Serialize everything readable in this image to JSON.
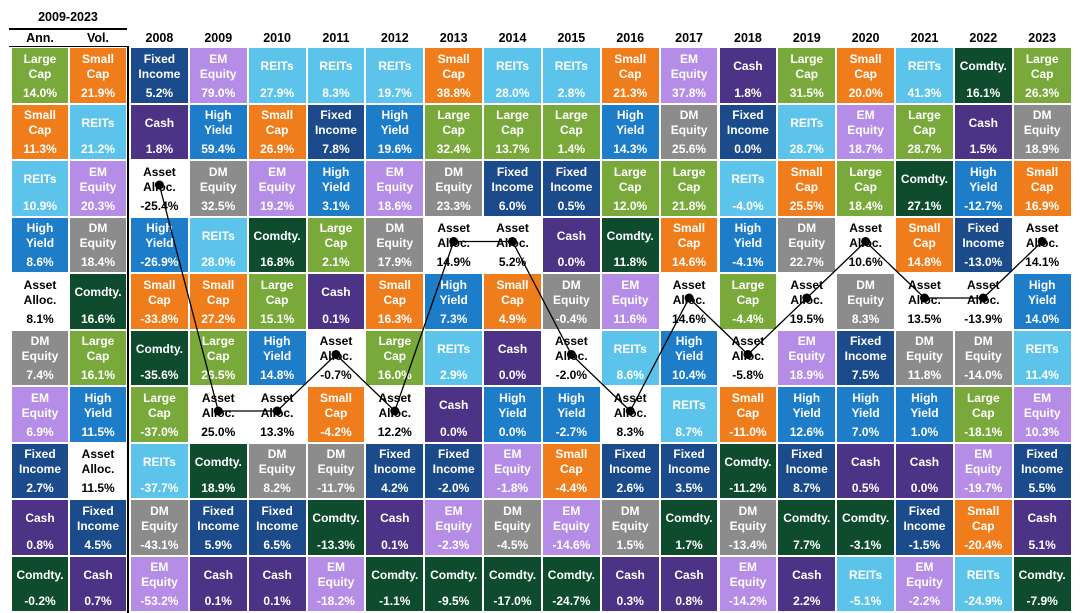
{
  "colors": {
    "Large Cap": "#7AA93B",
    "Small Cap": "#EF7D1C",
    "REITs": "#5CC4EA",
    "High Yield": "#1E7DC8",
    "Asset Alloc.": "#FFFFFF",
    "DM Equity": "#8C8C8C",
    "EM Equity": "#B58DE6",
    "Fixed Income": "#1B4B8B",
    "Cash": "#4D3385",
    "Comdty.": "#0F4C2E"
  },
  "chart_data": {
    "type": "table",
    "summary": {
      "period": "2009-2023",
      "columns": [
        {
          "label": "Ann.",
          "cells": [
            {
              "asset": "Large Cap",
              "value": "14.0%"
            },
            {
              "asset": "Small Cap",
              "value": "11.3%"
            },
            {
              "asset": "REITs",
              "value": "10.9%"
            },
            {
              "asset": "High Yield",
              "value": "8.6%"
            },
            {
              "asset": "Asset Alloc.",
              "value": "8.1%"
            },
            {
              "asset": "DM Equity",
              "value": "7.4%"
            },
            {
              "asset": "EM Equity",
              "value": "6.9%"
            },
            {
              "asset": "Fixed Income",
              "value": "2.7%"
            },
            {
              "asset": "Cash",
              "value": "0.8%"
            },
            {
              "asset": "Comdty.",
              "value": "-0.2%"
            }
          ]
        },
        {
          "label": "Vol.",
          "cells": [
            {
              "asset": "Small Cap",
              "value": "21.9%"
            },
            {
              "asset": "REITs",
              "value": "21.2%"
            },
            {
              "asset": "EM Equity",
              "value": "20.3%"
            },
            {
              "asset": "DM Equity",
              "value": "18.4%"
            },
            {
              "asset": "Comdty.",
              "value": "16.6%"
            },
            {
              "asset": "Large Cap",
              "value": "16.1%"
            },
            {
              "asset": "High Yield",
              "value": "11.5%"
            },
            {
              "asset": "Asset Alloc.",
              "value": "11.5%"
            },
            {
              "asset": "Fixed Income",
              "value": "4.5%"
            },
            {
              "asset": "Cash",
              "value": "0.7%"
            }
          ]
        }
      ]
    },
    "years": [
      {
        "year": "2008",
        "cells": [
          {
            "asset": "Fixed Income",
            "value": "5.2%"
          },
          {
            "asset": "Cash",
            "value": "1.8%"
          },
          {
            "asset": "Asset Alloc.",
            "value": "-25.4%"
          },
          {
            "asset": "High Yield",
            "value": "-26.9%"
          },
          {
            "asset": "Small Cap",
            "value": "-33.8%"
          },
          {
            "asset": "Comdty.",
            "value": "-35.6%"
          },
          {
            "asset": "Large Cap",
            "value": "-37.0%"
          },
          {
            "asset": "REITs",
            "value": "-37.7%"
          },
          {
            "asset": "DM Equity",
            "value": "-43.1%"
          },
          {
            "asset": "EM Equity",
            "value": "-53.2%"
          }
        ]
      },
      {
        "year": "2009",
        "cells": [
          {
            "asset": "EM Equity",
            "value": "79.0%"
          },
          {
            "asset": "High Yield",
            "value": "59.4%"
          },
          {
            "asset": "DM Equity",
            "value": "32.5%"
          },
          {
            "asset": "REITs",
            "value": "28.0%"
          },
          {
            "asset": "Small Cap",
            "value": "27.2%"
          },
          {
            "asset": "Large Cap",
            "value": "26.5%"
          },
          {
            "asset": "Asset Alloc.",
            "value": "25.0%"
          },
          {
            "asset": "Comdty.",
            "value": "18.9%"
          },
          {
            "asset": "Fixed Income",
            "value": "5.9%"
          },
          {
            "asset": "Cash",
            "value": "0.1%"
          }
        ]
      },
      {
        "year": "2010",
        "cells": [
          {
            "asset": "REITs",
            "value": "27.9%"
          },
          {
            "asset": "Small Cap",
            "value": "26.9%"
          },
          {
            "asset": "EM Equity",
            "value": "19.2%"
          },
          {
            "asset": "Comdty.",
            "value": "16.8%"
          },
          {
            "asset": "Large Cap",
            "value": "15.1%"
          },
          {
            "asset": "High Yield",
            "value": "14.8%"
          },
          {
            "asset": "Asset Alloc.",
            "value": "13.3%"
          },
          {
            "asset": "DM Equity",
            "value": "8.2%"
          },
          {
            "asset": "Fixed Income",
            "value": "6.5%"
          },
          {
            "asset": "Cash",
            "value": "0.1%"
          }
        ]
      },
      {
        "year": "2011",
        "cells": [
          {
            "asset": "REITs",
            "value": "8.3%"
          },
          {
            "asset": "Fixed Income",
            "value": "7.8%"
          },
          {
            "asset": "High Yield",
            "value": "3.1%"
          },
          {
            "asset": "Large Cap",
            "value": "2.1%"
          },
          {
            "asset": "Cash",
            "value": "0.1%"
          },
          {
            "asset": "Asset Alloc.",
            "value": "-0.7%"
          },
          {
            "asset": "Small Cap",
            "value": "-4.2%"
          },
          {
            "asset": "DM Equity",
            "value": "-11.7%"
          },
          {
            "asset": "Comdty.",
            "value": "-13.3%"
          },
          {
            "asset": "EM Equity",
            "value": "-18.2%"
          }
        ]
      },
      {
        "year": "2012",
        "cells": [
          {
            "asset": "REITs",
            "value": "19.7%"
          },
          {
            "asset": "High Yield",
            "value": "19.6%"
          },
          {
            "asset": "EM Equity",
            "value": "18.6%"
          },
          {
            "asset": "DM Equity",
            "value": "17.9%"
          },
          {
            "asset": "Small Cap",
            "value": "16.3%"
          },
          {
            "asset": "Large Cap",
            "value": "16.0%"
          },
          {
            "asset": "Asset Alloc.",
            "value": "12.2%"
          },
          {
            "asset": "Fixed Income",
            "value": "4.2%"
          },
          {
            "asset": "Cash",
            "value": "0.1%"
          },
          {
            "asset": "Comdty.",
            "value": "-1.1%"
          }
        ]
      },
      {
        "year": "2013",
        "cells": [
          {
            "asset": "Small Cap",
            "value": "38.8%"
          },
          {
            "asset": "Large Cap",
            "value": "32.4%"
          },
          {
            "asset": "DM Equity",
            "value": "23.3%"
          },
          {
            "asset": "Asset Alloc.",
            "value": "14.9%"
          },
          {
            "asset": "High Yield",
            "value": "7.3%"
          },
          {
            "asset": "REITs",
            "value": "2.9%"
          },
          {
            "asset": "Cash",
            "value": "0.0%"
          },
          {
            "asset": "Fixed Income",
            "value": "-2.0%"
          },
          {
            "asset": "EM Equity",
            "value": "-2.3%"
          },
          {
            "asset": "Comdty.",
            "value": "-9.5%"
          }
        ]
      },
      {
        "year": "2014",
        "cells": [
          {
            "asset": "REITs",
            "value": "28.0%"
          },
          {
            "asset": "Large Cap",
            "value": "13.7%"
          },
          {
            "asset": "Fixed Income",
            "value": "6.0%"
          },
          {
            "asset": "Asset Alloc.",
            "value": "5.2%"
          },
          {
            "asset": "Small Cap",
            "value": "4.9%"
          },
          {
            "asset": "Cash",
            "value": "0.0%"
          },
          {
            "asset": "High Yield",
            "value": "0.0%"
          },
          {
            "asset": "EM Equity",
            "value": "-1.8%"
          },
          {
            "asset": "DM Equity",
            "value": "-4.5%"
          },
          {
            "asset": "Comdty.",
            "value": "-17.0%"
          }
        ]
      },
      {
        "year": "2015",
        "cells": [
          {
            "asset": "REITs",
            "value": "2.8%"
          },
          {
            "asset": "Large Cap",
            "value": "1.4%"
          },
          {
            "asset": "Fixed Income",
            "value": "0.5%"
          },
          {
            "asset": "Cash",
            "value": "0.0%"
          },
          {
            "asset": "DM Equity",
            "value": "-0.4%"
          },
          {
            "asset": "Asset Alloc.",
            "value": "-2.0%"
          },
          {
            "asset": "High Yield",
            "value": "-2.7%"
          },
          {
            "asset": "Small Cap",
            "value": "-4.4%"
          },
          {
            "asset": "EM Equity",
            "value": "-14.6%"
          },
          {
            "asset": "Comdty.",
            "value": "-24.7%"
          }
        ]
      },
      {
        "year": "2016",
        "cells": [
          {
            "asset": "Small Cap",
            "value": "21.3%"
          },
          {
            "asset": "High Yield",
            "value": "14.3%"
          },
          {
            "asset": "Large Cap",
            "value": "12.0%"
          },
          {
            "asset": "Comdty.",
            "value": "11.8%"
          },
          {
            "asset": "EM Equity",
            "value": "11.6%"
          },
          {
            "asset": "REITs",
            "value": "8.6%"
          },
          {
            "asset": "Asset Alloc.",
            "value": "8.3%"
          },
          {
            "asset": "Fixed Income",
            "value": "2.6%"
          },
          {
            "asset": "DM Equity",
            "value": "1.5%"
          },
          {
            "asset": "Cash",
            "value": "0.3%"
          }
        ]
      },
      {
        "year": "2017",
        "cells": [
          {
            "asset": "EM Equity",
            "value": "37.8%"
          },
          {
            "asset": "DM Equity",
            "value": "25.6%"
          },
          {
            "asset": "Large Cap",
            "value": "21.8%"
          },
          {
            "asset": "Small Cap",
            "value": "14.6%"
          },
          {
            "asset": "Asset Alloc.",
            "value": "14.6%"
          },
          {
            "asset": "High Yield",
            "value": "10.4%"
          },
          {
            "asset": "REITs",
            "value": "8.7%"
          },
          {
            "asset": "Fixed Income",
            "value": "3.5%"
          },
          {
            "asset": "Comdty.",
            "value": "1.7%"
          },
          {
            "asset": "Cash",
            "value": "0.8%"
          }
        ]
      },
      {
        "year": "2018",
        "cells": [
          {
            "asset": "Cash",
            "value": "1.8%"
          },
          {
            "asset": "Fixed Income",
            "value": "0.0%"
          },
          {
            "asset": "REITs",
            "value": "-4.0%"
          },
          {
            "asset": "High Yield",
            "value": "-4.1%"
          },
          {
            "asset": "Large Cap",
            "value": "-4.4%"
          },
          {
            "asset": "Asset Alloc.",
            "value": "-5.8%"
          },
          {
            "asset": "Small Cap",
            "value": "-11.0%"
          },
          {
            "asset": "Comdty.",
            "value": "-11.2%"
          },
          {
            "asset": "DM Equity",
            "value": "-13.4%"
          },
          {
            "asset": "EM Equity",
            "value": "-14.2%"
          }
        ]
      },
      {
        "year": "2019",
        "cells": [
          {
            "asset": "Large Cap",
            "value": "31.5%"
          },
          {
            "asset": "REITs",
            "value": "28.7%"
          },
          {
            "asset": "Small Cap",
            "value": "25.5%"
          },
          {
            "asset": "DM Equity",
            "value": "22.7%"
          },
          {
            "asset": "Asset Alloc.",
            "value": "19.5%"
          },
          {
            "asset": "EM Equity",
            "value": "18.9%"
          },
          {
            "asset": "High Yield",
            "value": "12.6%"
          },
          {
            "asset": "Fixed Income",
            "value": "8.7%"
          },
          {
            "asset": "Comdty.",
            "value": "7.7%"
          },
          {
            "asset": "Cash",
            "value": "2.2%"
          }
        ]
      },
      {
        "year": "2020",
        "cells": [
          {
            "asset": "Small Cap",
            "value": "20.0%"
          },
          {
            "asset": "EM Equity",
            "value": "18.7%"
          },
          {
            "asset": "Large Cap",
            "value": "18.4%"
          },
          {
            "asset": "Asset Alloc.",
            "value": "10.6%"
          },
          {
            "asset": "DM Equity",
            "value": "8.3%"
          },
          {
            "asset": "Fixed Income",
            "value": "7.5%"
          },
          {
            "asset": "High Yield",
            "value": "7.0%"
          },
          {
            "asset": "Cash",
            "value": "0.5%"
          },
          {
            "asset": "Comdty.",
            "value": "-3.1%"
          },
          {
            "asset": "REITs",
            "value": "-5.1%"
          }
        ]
      },
      {
        "year": "2021",
        "cells": [
          {
            "asset": "REITs",
            "value": "41.3%"
          },
          {
            "asset": "Large Cap",
            "value": "28.7%"
          },
          {
            "asset": "Comdty.",
            "value": "27.1%"
          },
          {
            "asset": "Small Cap",
            "value": "14.8%"
          },
          {
            "asset": "Asset Alloc.",
            "value": "13.5%"
          },
          {
            "asset": "DM Equity",
            "value": "11.8%"
          },
          {
            "asset": "High Yield",
            "value": "1.0%"
          },
          {
            "asset": "Cash",
            "value": "0.0%"
          },
          {
            "asset": "Fixed Income",
            "value": "-1.5%"
          },
          {
            "asset": "EM Equity",
            "value": "-2.2%"
          }
        ]
      },
      {
        "year": "2022",
        "cells": [
          {
            "asset": "Comdty.",
            "value": "16.1%"
          },
          {
            "asset": "Cash",
            "value": "1.5%"
          },
          {
            "asset": "High Yield",
            "value": "-12.7%"
          },
          {
            "asset": "Fixed Income",
            "value": "-13.0%"
          },
          {
            "asset": "Asset Alloc.",
            "value": "-13.9%"
          },
          {
            "asset": "DM Equity",
            "value": "-14.0%"
          },
          {
            "asset": "Large Cap",
            "value": "-18.1%"
          },
          {
            "asset": "EM Equity",
            "value": "-19.7%"
          },
          {
            "asset": "Small Cap",
            "value": "-20.4%"
          },
          {
            "asset": "REITs",
            "value": "-24.9%"
          }
        ]
      },
      {
        "year": "2023",
        "cells": [
          {
            "asset": "Large Cap",
            "value": "26.3%"
          },
          {
            "asset": "DM Equity",
            "value": "18.9%"
          },
          {
            "asset": "Small Cap",
            "value": "16.9%"
          },
          {
            "asset": "Asset Alloc.",
            "value": "14.1%"
          },
          {
            "asset": "High Yield",
            "value": "14.0%"
          },
          {
            "asset": "REITs",
            "value": "11.4%"
          },
          {
            "asset": "EM Equity",
            "value": "10.3%"
          },
          {
            "asset": "Fixed Income",
            "value": "5.5%"
          },
          {
            "asset": "Cash",
            "value": "5.1%"
          },
          {
            "asset": "Comdty.",
            "value": "-7.9%"
          }
        ]
      }
    ]
  }
}
